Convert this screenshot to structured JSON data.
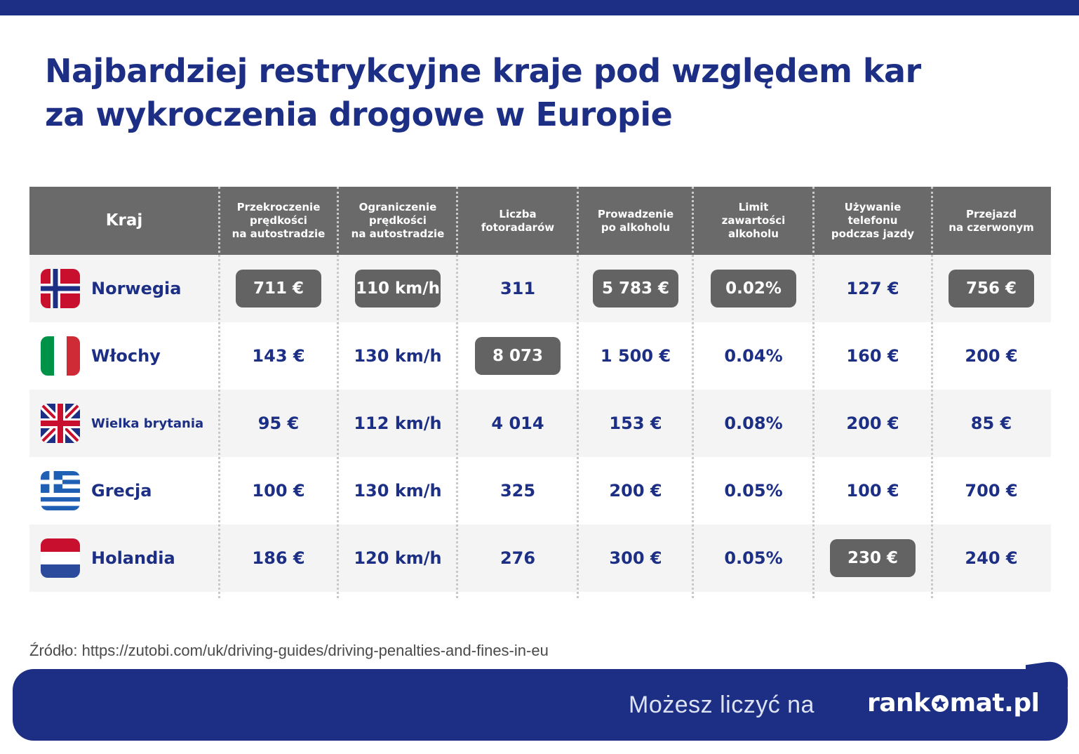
{
  "title": {
    "line1": "Najbardziej restrykcyjne kraje pod względem kar",
    "line2": "za wykroczenia drogowe w Europie"
  },
  "table": {
    "headers": [
      "Kraj",
      "Przekroczenie\nprędkości\nna autostradzie",
      "Ograniczenie\nprędkości\nna autostradzie",
      "Liczba\nfotoradarów",
      "Prowadzenie\npo alkoholu",
      "Limit\nzawartości\nalkoholu",
      "Używanie\ntelefonu\npodczas jazdy",
      "Przejazd\nna czerwonym"
    ],
    "rows": [
      {
        "country": "Norwegia",
        "flag": "norway-flag-icon",
        "values": [
          "711  €",
          "110 km/h",
          "311",
          "5 783 €",
          "0.02%",
          "127 €",
          "756 €"
        ],
        "highlight": [
          true,
          true,
          false,
          true,
          true,
          false,
          true
        ]
      },
      {
        "country": "Włochy",
        "flag": "italy-flag-icon",
        "values": [
          "143  €",
          "130 km/h",
          "8 073",
          "1 500 €",
          "0.04%",
          "160 €",
          "200 €"
        ],
        "highlight": [
          false,
          false,
          true,
          false,
          false,
          false,
          false
        ]
      },
      {
        "country": "Wielka brytania",
        "flag": "uk-flag-icon",
        "values": [
          "95  €",
          "112 km/h",
          "4 014",
          "153 €",
          "0.08%",
          "200 €",
          "85 €"
        ],
        "highlight": [
          false,
          false,
          false,
          false,
          false,
          false,
          false
        ]
      },
      {
        "country": "Grecja",
        "flag": "greece-flag-icon",
        "values": [
          "100  €",
          "130 km/h",
          "325",
          "200 €",
          "0.05%",
          "100 €",
          "700 €"
        ],
        "highlight": [
          false,
          false,
          false,
          false,
          false,
          false,
          false
        ]
      },
      {
        "country": "Holandia",
        "flag": "netherlands-flag-icon",
        "values": [
          "186  €",
          "120 km/h",
          "276",
          "300 €",
          "0.05%",
          "230 €",
          "240 €"
        ],
        "highlight": [
          false,
          false,
          false,
          false,
          false,
          true,
          false
        ]
      }
    ]
  },
  "source": "Źródło: https://zutobi.com/uk/driving-guides/driving-penalties-and-fines-in-eu",
  "footer": {
    "tagline": "Możesz liczyć na",
    "logo_left": "rank",
    "logo_right": "mat.pl"
  },
  "colors": {
    "brand": "#1c2f85",
    "header_bg": "#6a6a6a",
    "highlight_bg": "#636363"
  }
}
